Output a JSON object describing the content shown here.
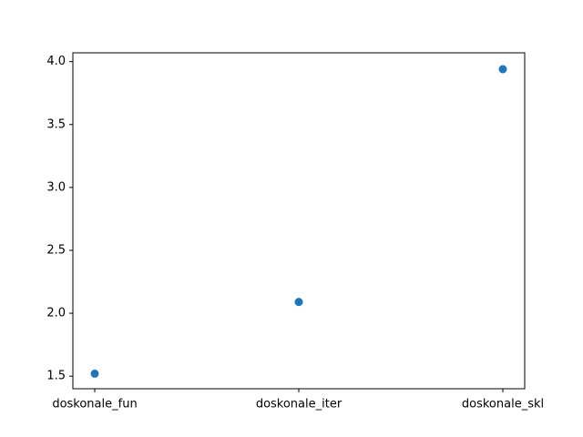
{
  "chart_data": {
    "type": "scatter",
    "title": "",
    "xlabel": "",
    "ylabel": "",
    "x": [
      "doskonale_fun",
      "doskonale_iter",
      "doskonale_skl"
    ],
    "series": [
      {
        "values": [
          1.52,
          2.09,
          3.94
        ]
      }
    ],
    "ylim": [
      1.4,
      4.07
    ],
    "y_ticks": [
      "1.5",
      "2.0",
      "2.5",
      "3.0",
      "3.5",
      "4.0"
    ],
    "grid": false,
    "legend": "none",
    "colors": {
      "marker": "#1f77b4",
      "axis": "#000000",
      "background": "#ffffff"
    }
  }
}
